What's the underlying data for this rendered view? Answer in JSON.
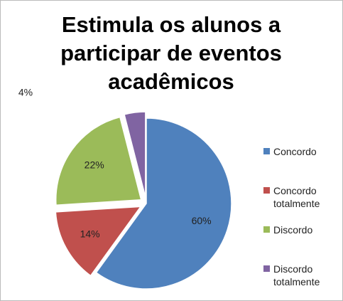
{
  "chart_data": {
    "type": "pie",
    "title": "Estimula os alunos a participar de eventos acadêmicos",
    "categories": [
      "Concordo",
      "Concordo totalmente",
      "Discordo",
      "Discordo totalmente"
    ],
    "values": [
      60,
      14,
      22,
      4
    ],
    "value_labels": [
      "60%",
      "14%",
      "22%",
      "4%"
    ],
    "colors": [
      "#4f81bd",
      "#c0504d",
      "#9bbb59",
      "#8064a2"
    ],
    "legend": "right"
  }
}
